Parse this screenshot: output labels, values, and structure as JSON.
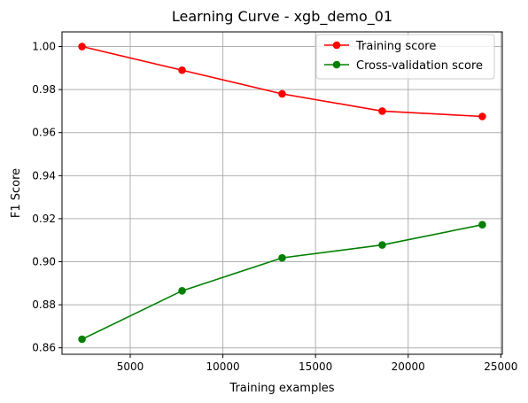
{
  "chart_data": {
    "type": "line",
    "title": "Learning Curve - xgb_demo_01",
    "xlabel": "Training examples",
    "ylabel": "F1 Score",
    "x": [
      2400,
      7800,
      13200,
      18600,
      24000
    ],
    "series": [
      {
        "name": "Training score",
        "color": "#ff0000",
        "values": [
          1.0,
          0.989,
          0.978,
          0.97,
          0.9675
        ]
      },
      {
        "name": "Cross-validation score",
        "color": "#008000",
        "values": [
          0.864,
          0.8865,
          0.9018,
          0.9078,
          0.9172
        ]
      }
    ],
    "xlim": [
      1320,
      25080
    ],
    "ylim": [
      0.857,
      1.0068
    ],
    "xticks": [
      5000,
      10000,
      15000,
      20000,
      25000
    ],
    "xtick_labels": [
      "5000",
      "10000",
      "15000",
      "20000",
      "25000"
    ],
    "yticks": [
      0.86,
      0.88,
      0.9,
      0.92,
      0.94,
      0.96,
      0.98,
      1.0
    ],
    "ytick_labels": [
      "0.86",
      "0.88",
      "0.90",
      "0.92",
      "0.94",
      "0.96",
      "0.98",
      "1.00"
    ],
    "grid": true,
    "legend_position": "top-right"
  }
}
